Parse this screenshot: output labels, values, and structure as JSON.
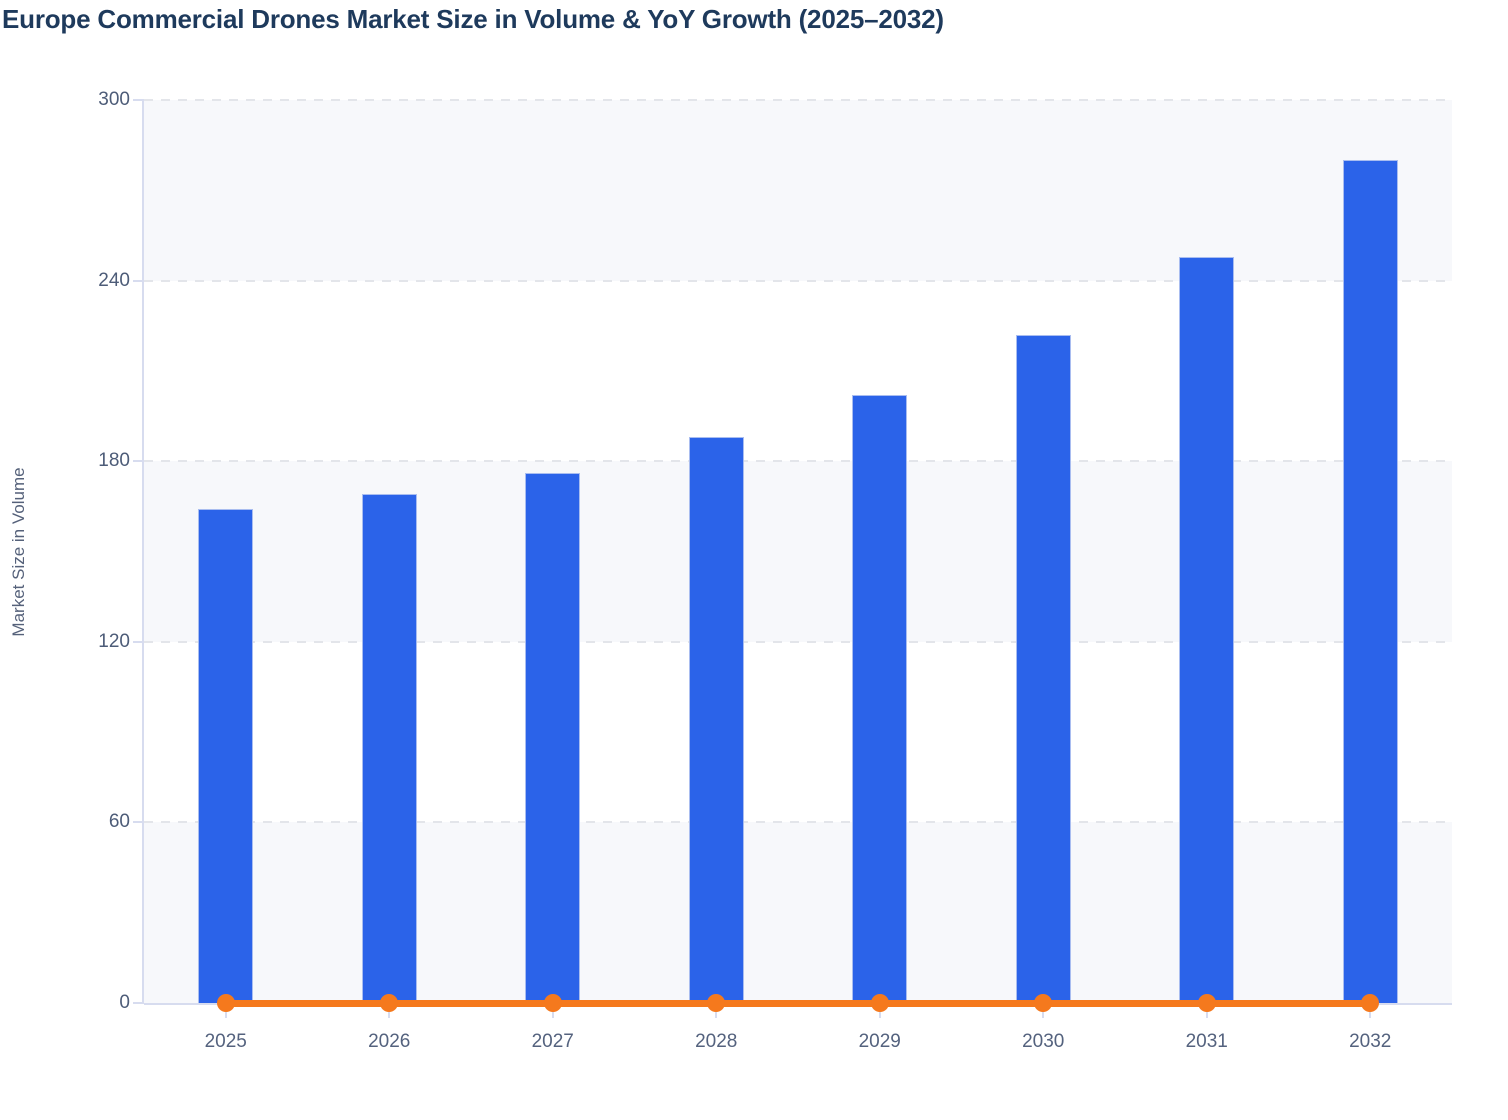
{
  "page": {
    "title": "Europe Commercial Drones Market Size in Volume & YoY Growth (2025–2032)"
  },
  "chart_data": {
    "type": "bar",
    "title": "Europe Commercial Drones Market Size in Volume & YoY Growth (2025–2032)",
    "categories": [
      "2025",
      "2026",
      "2027",
      "2028",
      "2029",
      "2030",
      "2031",
      "2032"
    ],
    "series": [
      {
        "name": "Market Size in Volume",
        "type": "bar",
        "color": "#2b63e9",
        "values": [
          164,
          169,
          176,
          188,
          202,
          222,
          248,
          280
        ]
      },
      {
        "name": "YoY Growth",
        "type": "line",
        "color": "#f5791d",
        "values": [
          0,
          0,
          0,
          0,
          0,
          0,
          0,
          0
        ]
      }
    ],
    "xlabel": "",
    "ylabel": "Market Size in Volume",
    "ylim": [
      0,
      300
    ],
    "yticks": [
      0,
      60,
      120,
      180,
      240,
      300
    ],
    "grid": "dashed-horizontal",
    "legend": "none",
    "plot_bands": "alternating shaded rows every 60 units starting below 300",
    "colors": {
      "bar": "#2b63e9",
      "line": "#f5791d",
      "band_shaded": "#f7f8fb",
      "gridline": "#e3e5ea",
      "axis": "#d7dcef",
      "title_text": "#1e3a5c",
      "y_tick_text": "#4d5c78",
      "x_label_text": "#54627e",
      "axis_title_text": "#55617a"
    }
  }
}
